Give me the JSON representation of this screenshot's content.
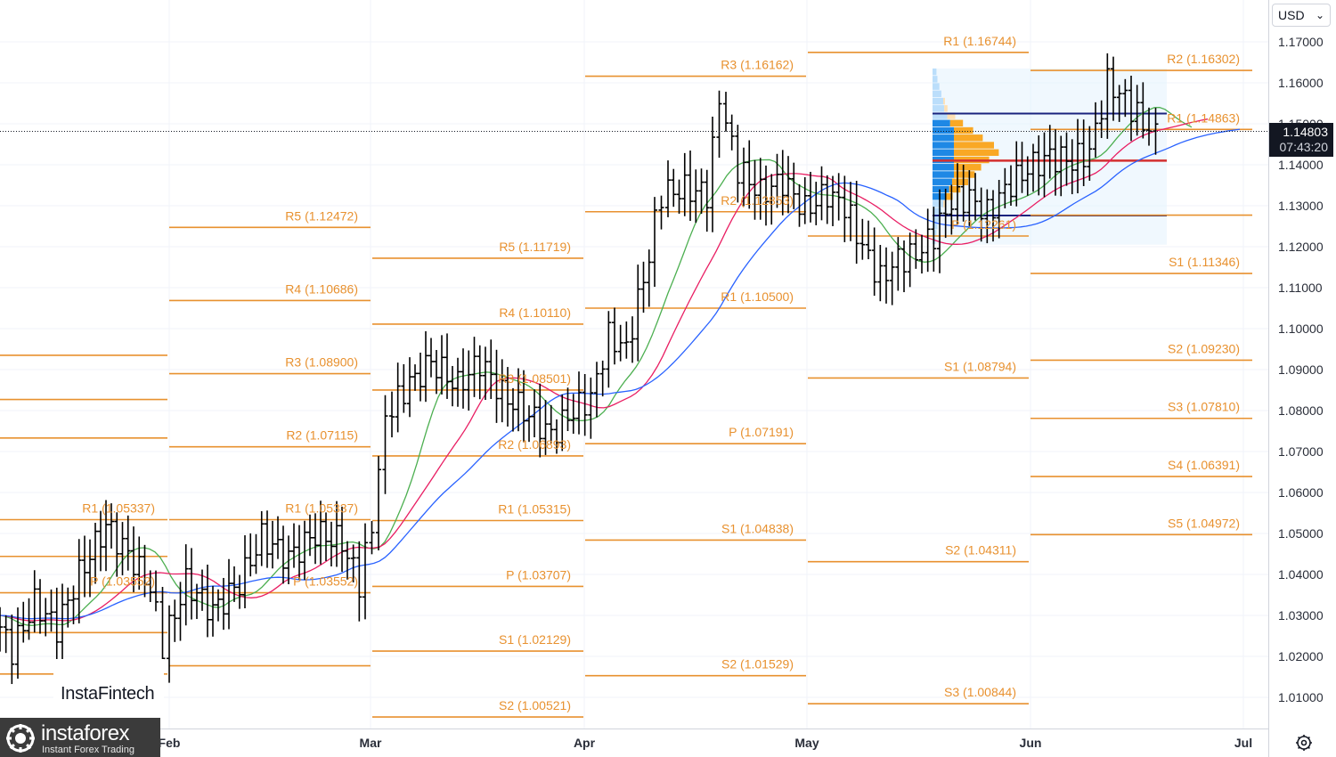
{
  "currency_selector": {
    "label": "USD",
    "caret": "⌄"
  },
  "price_tag": {
    "price": "1.14803",
    "countdown": "07:43:20"
  },
  "settings_icon": "gear-icon",
  "branding": {
    "primary": "InstaFintech",
    "secondary": "instaforex",
    "tagline": "Instant Forex Trading"
  },
  "chart_data": {
    "type": "ohlc-bar",
    "instrument_currency": "USD",
    "y_ticks": [
      "1.17000",
      "1.16000",
      "1.15000",
      "1.14000",
      "1.13000",
      "1.12000",
      "1.11000",
      "1.10000",
      "1.09000",
      "1.08000",
      "1.07000",
      "1.06000",
      "1.05000",
      "1.04000",
      "1.03000",
      "1.02000",
      "1.01000"
    ],
    "ylim": [
      1.0,
      1.1766
    ],
    "x_month_labels": [
      "Feb",
      "Mar",
      "Apr",
      "May",
      "Jun",
      "Jul"
    ],
    "last_price": 1.14803,
    "colors": {
      "bars": "#000000",
      "pivots": "#e8912f",
      "sma_fast": "#4caf50",
      "sma_mid": "#e91e63",
      "sma_slow": "#2962ff",
      "poc_line": "#d32f2f",
      "va_lines": "#1a237e"
    },
    "pivot_periods": [
      {
        "period": "prior",
        "levels": [
          {
            "label": "R1 (1.05337)",
            "value": 1.05337
          },
          {
            "label": "P (1.03552)",
            "value": 1.03552
          },
          {
            "label": "",
            "value": 1.0935
          },
          {
            "label": "",
            "value": 1.0827
          },
          {
            "label": "",
            "value": 1.0733
          },
          {
            "label": "",
            "value": 1.0444
          },
          {
            "label": "",
            "value": 1.0258
          },
          {
            "label": "",
            "value": 1.0157
          }
        ]
      },
      {
        "period": "Feb",
        "levels": [
          {
            "label": "R5 (1.12472)",
            "value": 1.12472
          },
          {
            "label": "R4 (1.10686)",
            "value": 1.10686
          },
          {
            "label": "R3 (1.08900)",
            "value": 1.089
          },
          {
            "label": "R2 (1.07115)",
            "value": 1.07115
          },
          {
            "label": "R1 (1.05337)",
            "value": 1.05337
          },
          {
            "label": "P (1.03552)",
            "value": 1.03552
          },
          {
            "label": "",
            "value": 1.0177
          }
        ]
      },
      {
        "period": "Mar",
        "levels": [
          {
            "label": "R5 (1.11719)",
            "value": 1.11719
          },
          {
            "label": "R4 (1.10110)",
            "value": 1.1011
          },
          {
            "label": "R3 (1.08501)",
            "value": 1.08501
          },
          {
            "label": "R2 (1.06893)",
            "value": 1.06893
          },
          {
            "label": "R1 (1.05315)",
            "value": 1.05315
          },
          {
            "label": "P (1.03707)",
            "value": 1.03707
          },
          {
            "label": "S1 (1.02129)",
            "value": 1.02129
          },
          {
            "label": "S2 (1.00521)",
            "value": 1.00521
          }
        ]
      },
      {
        "period": "Apr",
        "levels": [
          {
            "label": "R3 (1.16162)",
            "value": 1.16162
          },
          {
            "label": "R2 (1.12853)",
            "value": 1.12853
          },
          {
            "label": "R1 (1.10500)",
            "value": 1.105
          },
          {
            "label": "P (1.07191)",
            "value": 1.07191
          },
          {
            "label": "S1 (1.04838)",
            "value": 1.04838
          },
          {
            "label": "S2 (1.01529)",
            "value": 1.01529
          }
        ]
      },
      {
        "period": "May",
        "levels": [
          {
            "label": "R1 (1.16744)",
            "value": 1.16744
          },
          {
            "label": "P (1.12261)",
            "value": 1.12261
          },
          {
            "label": "S1 (1.08794)",
            "value": 1.08794
          },
          {
            "label": "S2 (1.04311)",
            "value": 1.04311
          },
          {
            "label": "S3 (1.00844)",
            "value": 1.00844
          }
        ]
      },
      {
        "period": "Jun",
        "levels": [
          {
            "label": "R2 (1.16302)",
            "value": 1.16302
          },
          {
            "label": "R1 (1.14863)",
            "value": 1.14863
          },
          {
            "label": "",
            "value": 1.1277
          },
          {
            "label": "S1 (1.11346)",
            "value": 1.11346
          },
          {
            "label": "S2 (1.09230)",
            "value": 1.0923
          },
          {
            "label": "S3 (1.07810)",
            "value": 1.0781
          },
          {
            "label": "S4 (1.06391)",
            "value": 1.06391
          },
          {
            "label": "S5 (1.04972)",
            "value": 1.04972
          }
        ]
      }
    ],
    "volume_profile": {
      "poc": 1.141,
      "va_high": 1.1525,
      "va_low": 1.1276,
      "range": [
        1.1205,
        1.1635
      ]
    }
  }
}
